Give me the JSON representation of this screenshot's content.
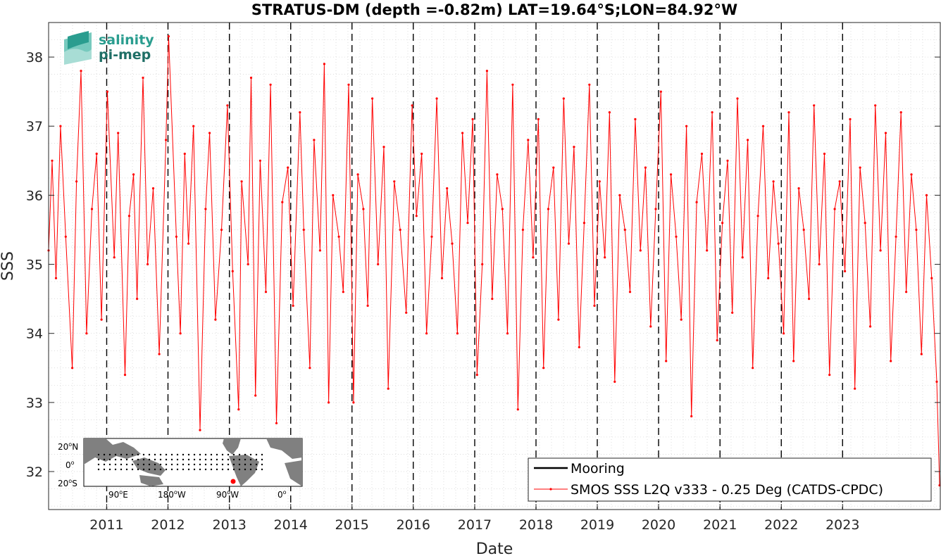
{
  "logo": {
    "line1": "salinity",
    "line2": "pi-mep"
  },
  "legend": {
    "mooring_label": "Mooring",
    "smos_label": "SMOS SSS L2Q v333 - 0.25 Deg (CATDS-CPDC)"
  },
  "colors": {
    "smos": "#ff0000",
    "mooring": "#000000",
    "logo": "#2a9d8f",
    "land": "#808080"
  },
  "inset_map": {
    "lat_labels": [
      "20",
      "0",
      "20"
    ],
    "lat_suffix": [
      "N",
      "",
      "S"
    ],
    "lon_labels": [
      "90",
      "180",
      "90",
      "0"
    ],
    "lon_suffix": [
      "E",
      "W",
      "W",
      ""
    ]
  },
  "chart_data": {
    "type": "line",
    "title": "STRATUS-DM (depth =-0.82m) LAT=19.64°S;LON=84.92°W",
    "xlabel": "Date",
    "ylabel": "SSS",
    "xlim": [
      "2010-01-20",
      "2024-08-05"
    ],
    "ylim": [
      31.45,
      38.5
    ],
    "grid": true,
    "legend_position": "bottom-right",
    "x_ticks": [
      "2011",
      "2012",
      "2013",
      "2014",
      "2015",
      "2016",
      "2017",
      "2018",
      "2019",
      "2020",
      "2021",
      "2022",
      "2023"
    ],
    "y_ticks": [
      32,
      33,
      34,
      35,
      36,
      37,
      38
    ],
    "year_boundaries": [
      "2011-01-01",
      "2012-01-01",
      "2013-01-01",
      "2014-01-01",
      "2015-01-01",
      "2016-01-01",
      "2017-01-01",
      "2018-01-01",
      "2019-01-01",
      "2020-01-01",
      "2021-01-01",
      "2022-01-01",
      "2023-01-01"
    ],
    "series": [
      {
        "name": "Mooring",
        "x": [],
        "values": []
      },
      {
        "name": "SMOS SSS L2Q v333 - 0.25 Deg (CATDS-CPDC)",
        "x": [
          "2010-01-20",
          "2010-02-10",
          "2010-03-05",
          "2010-04-01",
          "2010-05-02",
          "2010-06-10",
          "2010-07-05",
          "2010-08-01",
          "2010-09-03",
          "2010-10-05",
          "2010-11-02",
          "2010-12-01",
          "2011-01-05",
          "2011-02-15",
          "2011-03-10",
          "2011-04-20",
          "2011-05-15",
          "2011-06-10",
          "2011-07-01",
          "2011-08-05",
          "2011-09-02",
          "2011-10-05",
          "2011-11-10",
          "2011-12-20",
          "2012-01-05",
          "2012-02-20",
          "2012-03-15",
          "2012-04-10",
          "2012-05-02",
          "2012-06-01",
          "2012-07-10",
          "2012-08-12",
          "2012-09-05",
          "2012-10-10",
          "2012-11-15",
          "2012-12-20",
          "2013-01-20",
          "2013-02-25",
          "2013-03-15",
          "2013-04-22",
          "2013-05-10",
          "2013-06-05",
          "2013-07-03",
          "2013-08-06",
          "2013-09-03",
          "2013-10-08",
          "2013-11-12",
          "2013-12-15",
          "2014-01-15",
          "2014-02-25",
          "2014-03-20",
          "2014-04-25",
          "2014-05-20",
          "2014-06-25",
          "2014-07-20",
          "2014-08-15",
          "2014-09-10",
          "2014-10-15",
          "2014-11-10",
          "2014-12-12",
          "2015-01-10",
          "2015-02-05",
          "2015-03-10",
          "2015-04-05",
          "2015-05-02",
          "2015-06-05",
          "2015-07-10",
          "2015-08-05",
          "2015-09-10",
          "2015-10-15",
          "2015-11-20",
          "2015-12-25",
          "2016-01-20",
          "2016-02-20",
          "2016-03-20",
          "2016-04-20",
          "2016-05-20",
          "2016-06-20",
          "2016-07-20",
          "2016-08-20",
          "2016-09-20",
          "2016-10-20",
          "2016-11-20",
          "2016-12-20",
          "2017-01-15",
          "2017-02-15",
          "2017-03-15",
          "2017-04-15",
          "2017-05-15",
          "2017-06-15",
          "2017-07-15",
          "2017-08-15",
          "2017-09-15",
          "2017-10-15",
          "2017-11-15",
          "2017-12-15",
          "2018-01-15",
          "2018-02-15",
          "2018-03-15",
          "2018-04-15",
          "2018-05-15",
          "2018-06-15",
          "2018-07-15",
          "2018-08-15",
          "2018-09-15",
          "2018-10-15",
          "2018-11-15",
          "2018-12-15",
          "2019-01-15",
          "2019-02-15",
          "2019-03-15",
          "2019-04-15",
          "2019-05-15",
          "2019-06-15",
          "2019-07-15",
          "2019-08-15",
          "2019-09-15",
          "2019-10-15",
          "2019-11-15",
          "2019-12-15",
          "2020-01-15",
          "2020-02-15",
          "2020-03-15",
          "2020-04-15",
          "2020-05-15",
          "2020-06-15",
          "2020-07-15",
          "2020-08-15",
          "2020-09-15",
          "2020-10-15",
          "2020-11-15",
          "2020-12-15",
          "2021-01-15",
          "2021-02-15",
          "2021-03-15",
          "2021-04-15",
          "2021-05-15",
          "2021-06-15",
          "2021-07-15",
          "2021-08-15",
          "2021-09-15",
          "2021-10-15",
          "2021-11-15",
          "2021-12-15",
          "2022-01-15",
          "2022-02-15",
          "2022-03-15",
          "2022-04-15",
          "2022-05-15",
          "2022-06-15",
          "2022-07-15",
          "2022-08-15",
          "2022-09-15",
          "2022-10-15",
          "2022-11-15",
          "2022-12-15",
          "2023-01-15",
          "2023-02-15",
          "2023-03-15",
          "2023-04-15",
          "2023-05-15",
          "2023-06-15",
          "2023-07-15",
          "2023-08-15",
          "2023-09-15",
          "2023-10-15",
          "2023-11-15",
          "2023-12-15",
          "2024-01-15",
          "2024-02-15",
          "2024-03-15",
          "2024-04-15",
          "2024-05-15",
          "2024-06-15",
          "2024-07-15",
          "2024-08-01"
        ],
        "values": [
          35.2,
          36.5,
          34.8,
          37.0,
          35.4,
          33.5,
          36.2,
          37.8,
          34.0,
          35.8,
          36.6,
          34.2,
          37.5,
          35.1,
          36.9,
          33.4,
          35.7,
          36.3,
          34.5,
          37.7,
          35.0,
          36.1,
          33.7,
          36.8,
          38.3,
          35.4,
          34.0,
          36.6,
          35.3,
          37.0,
          32.6,
          35.8,
          36.9,
          34.2,
          35.5,
          37.3,
          34.9,
          32.9,
          36.2,
          35.0,
          37.7,
          33.1,
          36.5,
          34.6,
          37.6,
          32.7,
          35.9,
          36.4,
          34.4,
          37.2,
          35.5,
          33.5,
          36.8,
          35.2,
          37.9,
          33.0,
          36.0,
          35.4,
          34.6,
          37.6,
          33.0,
          36.3,
          35.8,
          34.4,
          37.4,
          35.0,
          36.7,
          33.2,
          36.2,
          35.5,
          34.3,
          37.3,
          35.7,
          36.6,
          34.0,
          35.4,
          37.4,
          34.8,
          36.1,
          35.3,
          34.0,
          36.9,
          35.6,
          37.1,
          33.4,
          35.0,
          37.8,
          34.5,
          36.3,
          35.8,
          34.0,
          37.6,
          32.9,
          35.5,
          36.8,
          35.1,
          37.1,
          33.5,
          35.8,
          36.4,
          34.2,
          37.4,
          35.3,
          36.7,
          33.8,
          35.6,
          37.6,
          34.4,
          36.2,
          35.1,
          37.2,
          33.3,
          36.0,
          35.5,
          34.6,
          37.1,
          35.2,
          36.4,
          34.1,
          35.8,
          37.5,
          33.6,
          36.3,
          35.4,
          34.2,
          37.0,
          32.8,
          35.9,
          36.6,
          35.2,
          37.2,
          33.9,
          35.6,
          36.5,
          34.3,
          37.4,
          35.1,
          36.8,
          33.5,
          35.7,
          37.0,
          34.8,
          36.2,
          35.3,
          34.0,
          37.2,
          33.6,
          36.1,
          35.5,
          34.5,
          37.3,
          35.0,
          36.6,
          33.4,
          35.8,
          36.2,
          34.9,
          37.1,
          33.2,
          36.4,
          35.6,
          34.1,
          37.3,
          35.2,
          36.9,
          33.6,
          35.4,
          37.2,
          34.6,
          36.3,
          35.5,
          33.7,
          36.0,
          34.8,
          33.3,
          31.8
        ]
      }
    ]
  }
}
